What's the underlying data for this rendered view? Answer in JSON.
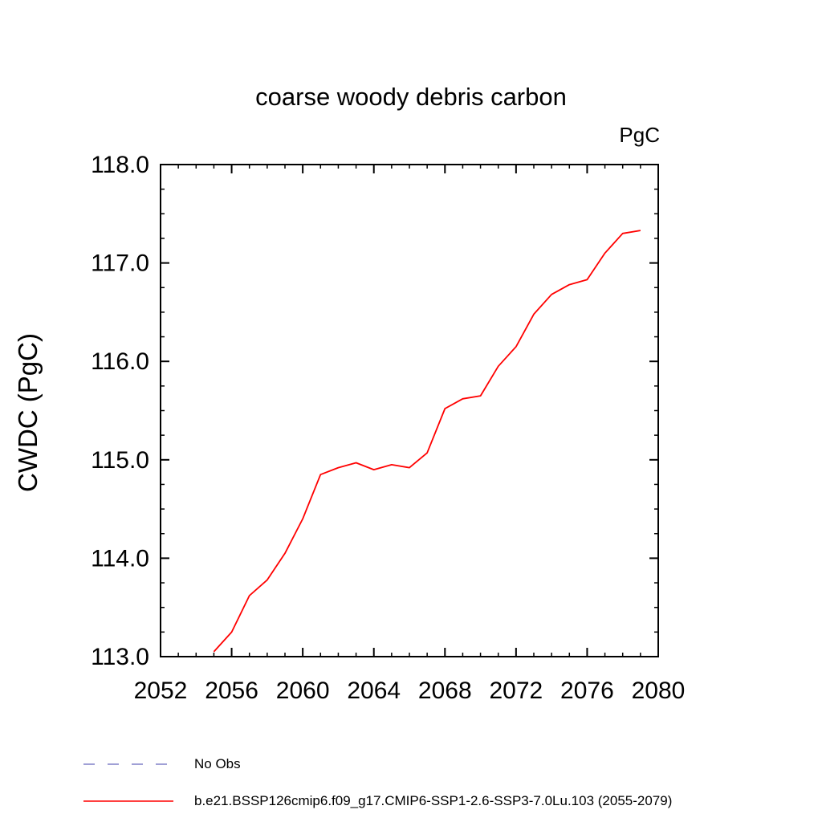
{
  "chart": {
    "title": "coarse woody debris carbon",
    "units_label": "PgC",
    "y_axis_title": "CWDC  (PgC)"
  },
  "legend": {
    "items": [
      {
        "label": "No Obs",
        "style": "dashed",
        "color": "#8080c8"
      },
      {
        "label": "b.e21.BSSP126cmip6.f09_g17.CMIP6-SSP1-2.6-SSP3-7.0Lu.103 (2055-2079)",
        "style": "solid",
        "color": "#ff0000"
      }
    ]
  },
  "chart_data": {
    "type": "line",
    "title": "coarse woody debris carbon",
    "xlabel": "",
    "ylabel": "CWDC (PgC)",
    "units": "PgC",
    "xlim": [
      2052,
      2080
    ],
    "ylim": [
      113.0,
      118.0
    ],
    "x_ticks": [
      2052,
      2056,
      2060,
      2064,
      2068,
      2072,
      2076,
      2080
    ],
    "y_ticks": [
      113.0,
      114.0,
      115.0,
      116.0,
      117.0,
      118.0
    ],
    "grid": false,
    "legend_position": "bottom-left",
    "frame_color": "#000000",
    "series": [
      {
        "name": "b.e21.BSSP126cmip6.f09_g17.CMIP6-SSP1-2.6-SSP3-7.0Lu.103 (2055-2079)",
        "color": "#ff0000",
        "x": [
          2055,
          2056,
          2057,
          2058,
          2059,
          2060,
          2061,
          2062,
          2063,
          2064,
          2065,
          2066,
          2067,
          2068,
          2069,
          2070,
          2071,
          2072,
          2073,
          2074,
          2075,
          2076,
          2077,
          2078,
          2079
        ],
        "y": [
          113.05,
          113.25,
          113.62,
          113.78,
          114.05,
          114.4,
          114.85,
          114.92,
          114.97,
          114.9,
          114.95,
          114.92,
          115.07,
          115.52,
          115.62,
          115.65,
          115.95,
          116.15,
          116.48,
          116.68,
          116.78,
          116.83,
          117.1,
          117.3,
          117.33
        ]
      }
    ]
  }
}
